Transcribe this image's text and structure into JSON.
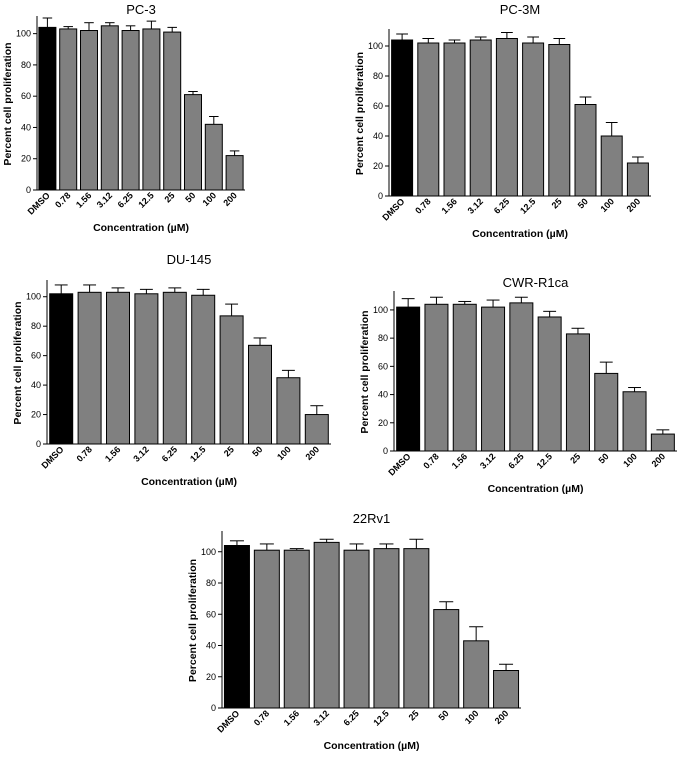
{
  "chart_data": [
    {
      "type": "bar",
      "title": "PC-3",
      "xlabel": "Concentration (µM)",
      "ylabel": "Percent cell proliferation",
      "categories": [
        "DMSO",
        "0.78",
        "1.56",
        "3.12",
        "6.25",
        "12.5",
        "25",
        "50",
        "100",
        "200"
      ],
      "values": [
        104,
        103,
        102,
        105,
        102,
        103,
        101,
        61,
        42,
        22
      ],
      "errors": [
        6,
        1.5,
        5,
        2,
        3,
        5,
        3,
        2,
        5,
        3
      ],
      "ylim": [
        0,
        110
      ],
      "yticks": [
        0,
        20,
        40,
        60,
        80,
        100
      ],
      "colors": [
        "#000000",
        "#808080",
        "#808080",
        "#808080",
        "#808080",
        "#808080",
        "#808080",
        "#808080",
        "#808080",
        "#808080"
      ],
      "grid": false
    },
    {
      "type": "bar",
      "title": "PC-3M",
      "xlabel": "Concentration (µM)",
      "ylabel": "Percent cell proliferation",
      "categories": [
        "DMSO",
        "0.78",
        "1.56",
        "3.12",
        "6.25",
        "12.5",
        "25",
        "50",
        "100",
        "200"
      ],
      "values": [
        104,
        102,
        102,
        104,
        105,
        102,
        101,
        61,
        40,
        22
      ],
      "errors": [
        4,
        3,
        2,
        2,
        4,
        4,
        4,
        5,
        9,
        4
      ],
      "ylim": [
        0,
        110
      ],
      "yticks": [
        0,
        20,
        40,
        60,
        80,
        100
      ],
      "colors": [
        "#000000",
        "#808080",
        "#808080",
        "#808080",
        "#808080",
        "#808080",
        "#808080",
        "#808080",
        "#808080",
        "#808080"
      ],
      "grid": false
    },
    {
      "type": "bar",
      "title": "DU-145",
      "xlabel": "Concentration (µM)",
      "ylabel": "Percent cell proliferation",
      "categories": [
        "DMSO",
        "0.78",
        "1.56",
        "3.12",
        "6.25",
        "12.5",
        "25",
        "50",
        "100",
        "200"
      ],
      "values": [
        102,
        103,
        103,
        102,
        103,
        101,
        87,
        67,
        45,
        20
      ],
      "errors": [
        6,
        5,
        3,
        3,
        3,
        4,
        8,
        5,
        5,
        6
      ],
      "ylim": [
        0,
        110
      ],
      "yticks": [
        0,
        20,
        40,
        60,
        80,
        100
      ],
      "colors": [
        "#000000",
        "#808080",
        "#808080",
        "#808080",
        "#808080",
        "#808080",
        "#808080",
        "#808080",
        "#808080",
        "#808080"
      ],
      "grid": false
    },
    {
      "type": "bar",
      "title": "CWR-R1ca",
      "xlabel": "Concentration (µM)",
      "ylabel": "Percent cell proliferation",
      "categories": [
        "DMSO",
        "0.78",
        "1.56",
        "3.12",
        "6.25",
        "12.5",
        "25",
        "50",
        "100",
        "200"
      ],
      "values": [
        102,
        104,
        104,
        102,
        105,
        95,
        83,
        55,
        42,
        12
      ],
      "errors": [
        6,
        5,
        2,
        5,
        4,
        4,
        4,
        8,
        3,
        3
      ],
      "ylim": [
        0,
        112
      ],
      "yticks": [
        0,
        20,
        40,
        60,
        80,
        100
      ],
      "colors": [
        "#000000",
        "#808080",
        "#808080",
        "#808080",
        "#808080",
        "#808080",
        "#808080",
        "#808080",
        "#808080",
        "#808080"
      ],
      "grid": false
    },
    {
      "type": "bar",
      "title": "22Rv1",
      "xlabel": "Concentration (µM)",
      "ylabel": "Percent cell proliferation",
      "categories": [
        "DMSO",
        "0.78",
        "1.56",
        "3.12",
        "6.25",
        "12.5",
        "25",
        "50",
        "100",
        "200"
      ],
      "values": [
        104,
        101,
        101,
        106,
        101,
        102,
        102,
        63,
        43,
        24
      ],
      "errors": [
        3,
        4,
        1,
        2,
        4,
        3,
        6,
        5,
        9,
        4
      ],
      "ylim": [
        0,
        112
      ],
      "yticks": [
        0,
        20,
        40,
        60,
        80,
        100
      ],
      "colors": [
        "#000000",
        "#808080",
        "#808080",
        "#808080",
        "#808080",
        "#808080",
        "#808080",
        "#808080",
        "#808080",
        "#808080"
      ],
      "grid": false
    }
  ]
}
